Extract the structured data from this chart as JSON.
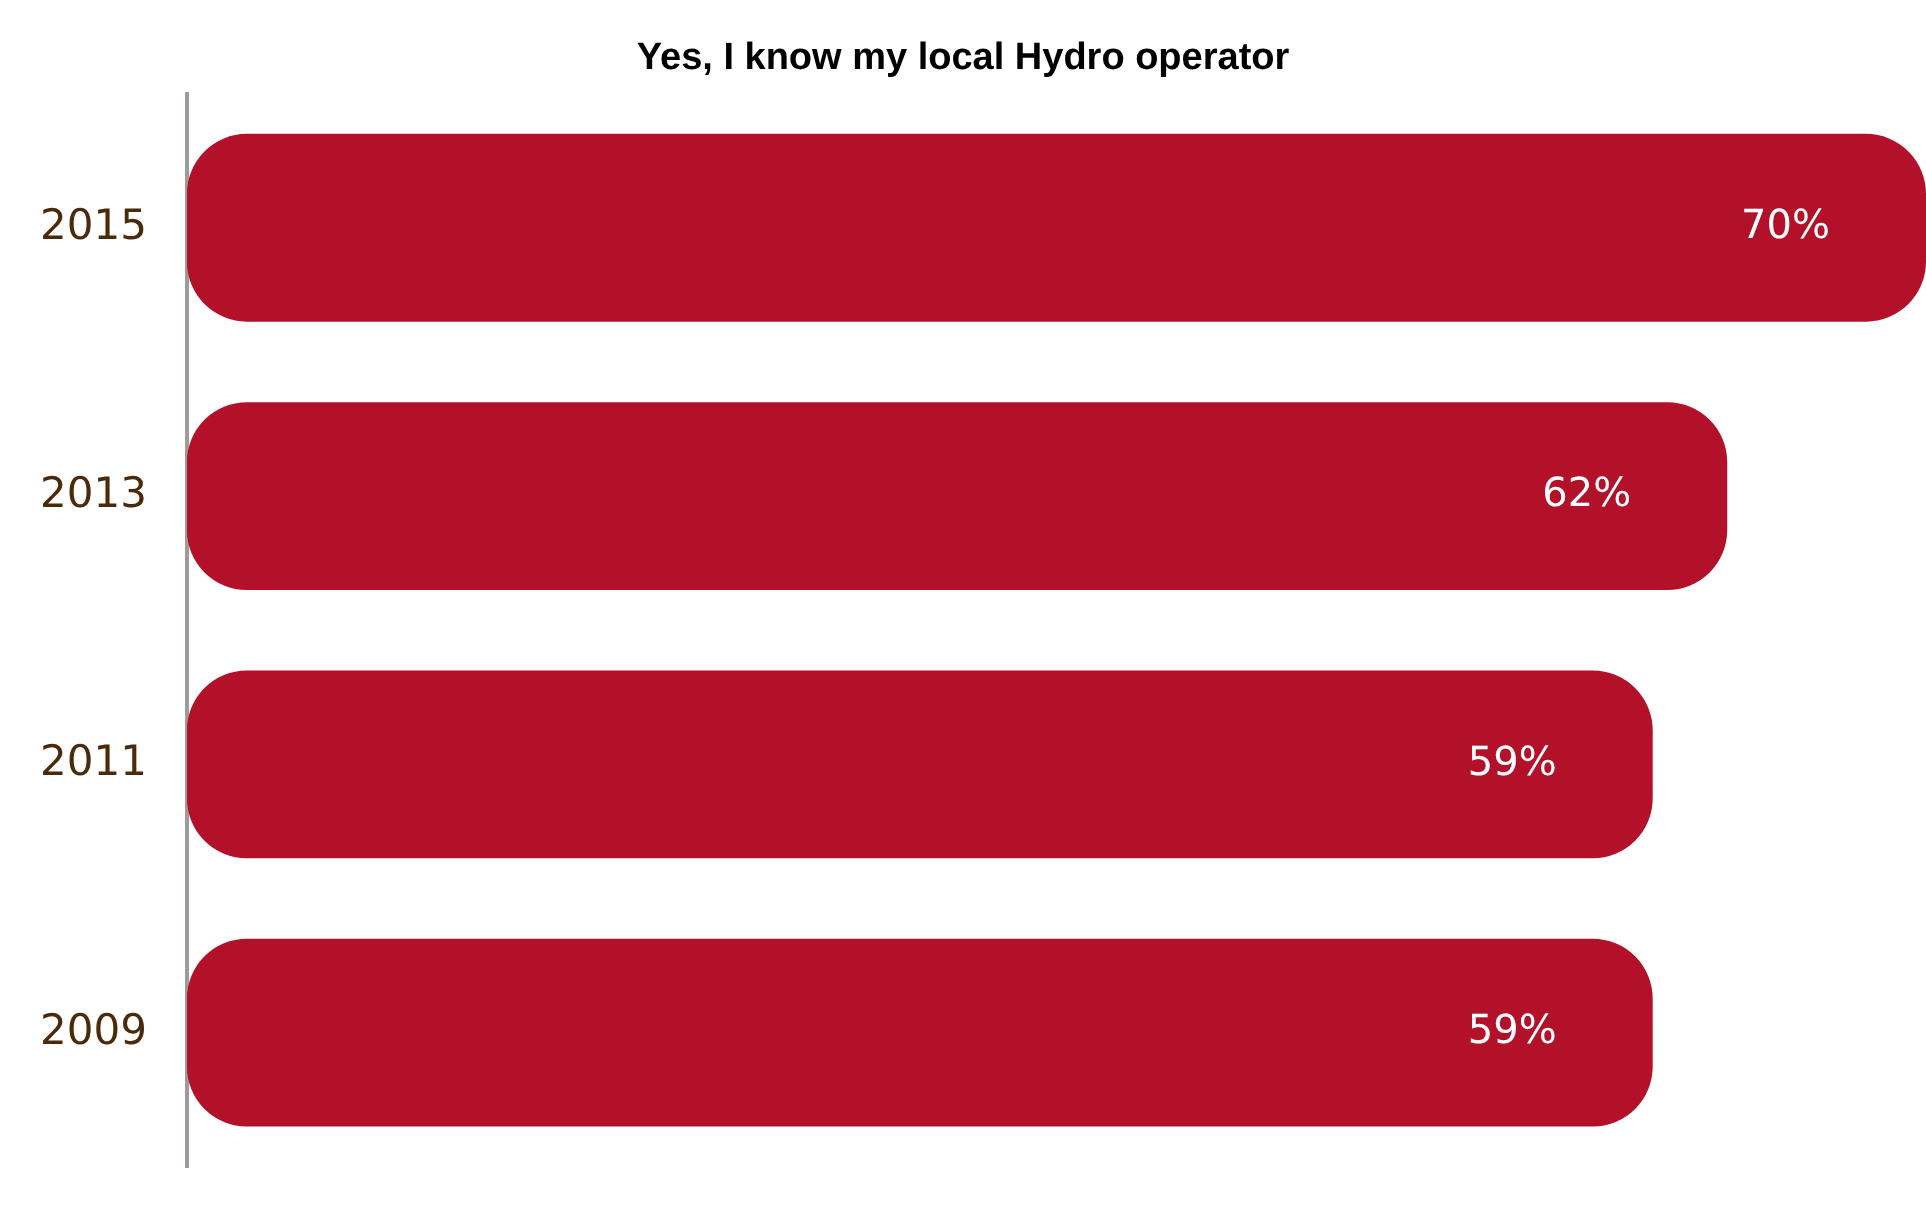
{
  "chart_data": {
    "type": "bar",
    "orientation": "horizontal",
    "title": "Yes, I know my local Hydro operator",
    "categories": [
      "2015",
      "2013",
      "2011",
      "2009"
    ],
    "values": [
      70,
      62,
      59,
      59
    ],
    "value_labels": [
      "70%",
      "62%",
      "59%",
      "59%"
    ],
    "color": "#b3102a",
    "tick_labels": "y",
    "legend": false
  }
}
